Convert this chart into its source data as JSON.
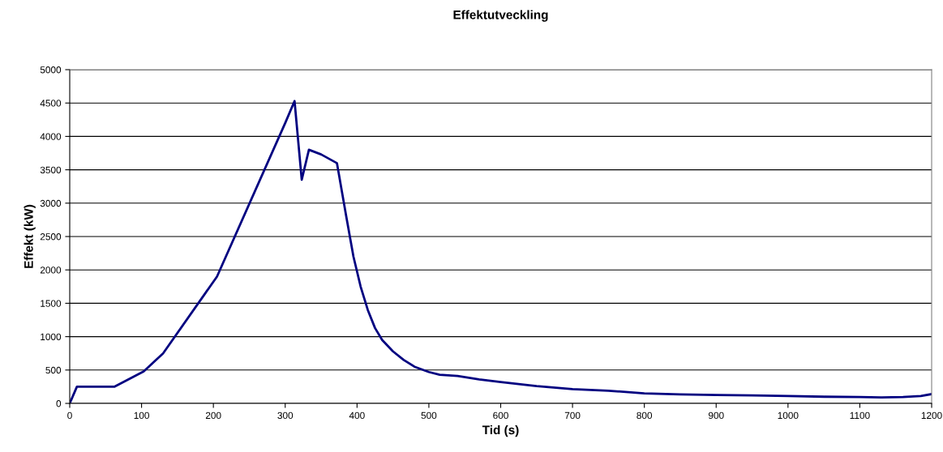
{
  "chart_data": {
    "type": "line",
    "title": "Effektutveckling",
    "xlabel": "Tid (s)",
    "ylabel": "Effekt (kW)",
    "series": [
      {
        "color": "#000080",
        "x": [
          0,
          10,
          62,
          103,
          130,
          205,
          300,
          313,
          323,
          333,
          350,
          372,
          385,
          395,
          405,
          415,
          425,
          435,
          450,
          465,
          480,
          500,
          515,
          540,
          570,
          600,
          650,
          700,
          750,
          800,
          850,
          900,
          950,
          1000,
          1050,
          1100,
          1130,
          1160,
          1185,
          1200
        ],
        "values": [
          0,
          250,
          250,
          480,
          750,
          1900,
          4200,
          4530,
          3350,
          3800,
          3730,
          3600,
          2800,
          2200,
          1750,
          1400,
          1130,
          950,
          780,
          650,
          550,
          470,
          430,
          410,
          360,
          320,
          260,
          215,
          190,
          150,
          135,
          125,
          120,
          110,
          100,
          95,
          90,
          95,
          110,
          140
        ]
      }
    ],
    "xlim": [
      0,
      1200
    ],
    "xticks": [
      0,
      100,
      200,
      300,
      400,
      500,
      600,
      700,
      800,
      900,
      1000,
      1100,
      1200
    ],
    "ylim": [
      0,
      5000
    ],
    "yticks": [
      0,
      500,
      1000,
      1500,
      2000,
      2500,
      3000,
      3500,
      4000,
      4500,
      5000
    ],
    "grid": "y",
    "legend": false,
    "marker": "none",
    "line_style": "solid"
  }
}
